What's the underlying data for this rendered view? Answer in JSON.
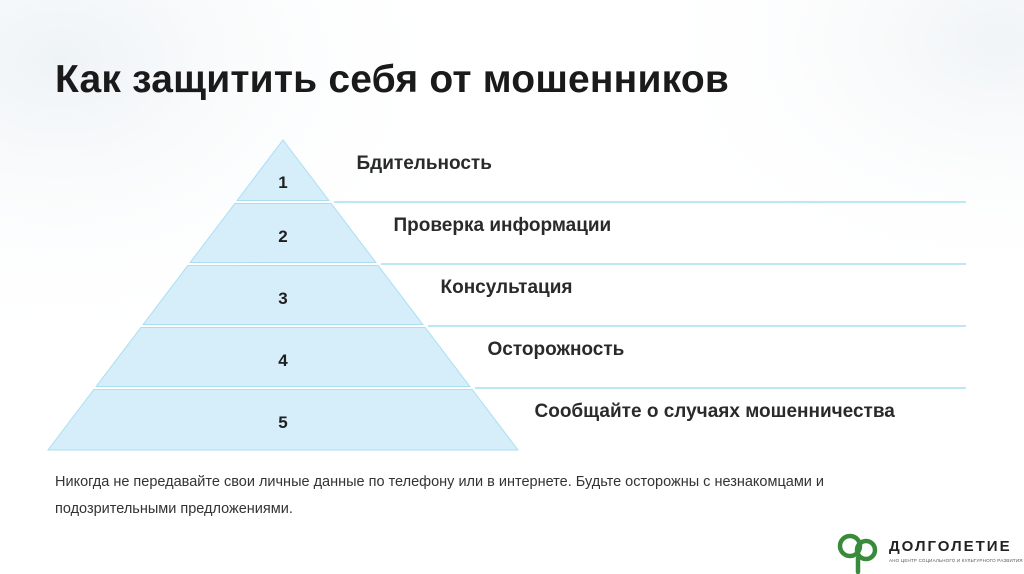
{
  "title": "Как защитить себя от мошенников",
  "pyramid": {
    "levels": [
      {
        "number": "1",
        "label": "Бдительность"
      },
      {
        "number": "2",
        "label": "Проверка информации"
      },
      {
        "number": "3",
        "label": "Консультация"
      },
      {
        "number": "4",
        "label": "Осторожность"
      },
      {
        "number": "5",
        "label": "Сообщайте о случаях мошенничества"
      }
    ],
    "fill_color": "#d5eef9",
    "stroke_color": "#a9dff1"
  },
  "note": "Никогда не передавайте свои личные данные по телефону или в интернете. Будьте осторожны с незнакомцами и подозрительными предложениями.",
  "logo": {
    "name": "ДОЛГОЛЕТИЕ",
    "subtitle": "АНО ЦЕНТР СОЦИАЛЬНОГО И КУЛЬТУРНОГО РАЗВИТИЯ",
    "color": "#3a8a3c",
    "icon": "tree-leaf-icon"
  }
}
